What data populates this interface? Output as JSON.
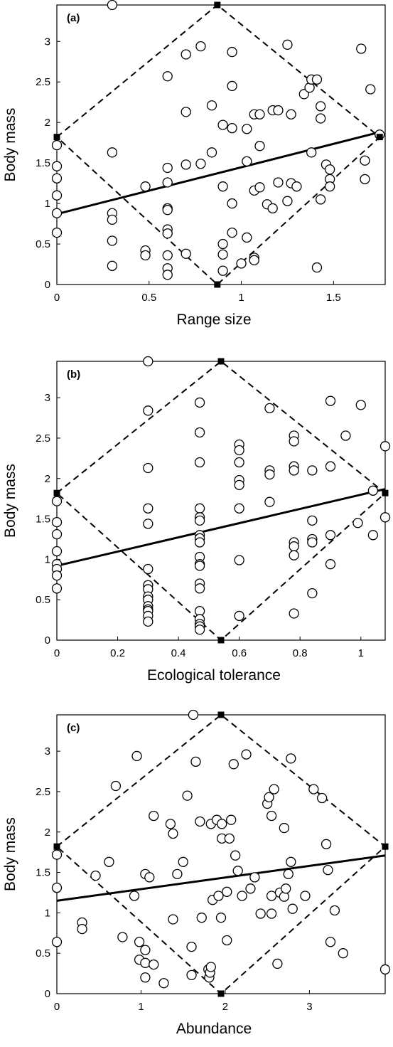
{
  "chart_data": [
    {
      "type": "scatter",
      "panel_label": "(a)",
      "xlabel": "Range size",
      "ylabel": "Body mass",
      "xlim": [
        0,
        1.78
      ],
      "ylim": [
        0,
        3.45
      ],
      "xticks": [
        0,
        0.5,
        1,
        1.5
      ],
      "xtick_labels": [
        "0",
        "0.5",
        "1",
        "1.5"
      ],
      "yticks": [
        0,
        0.5,
        1,
        1.5,
        2,
        2.5,
        3
      ],
      "ytick_labels": [
        "0",
        "0.5",
        "1",
        "1.5",
        "2",
        "2.5",
        "3"
      ],
      "points": [
        [
          0.3,
          3.45
        ],
        [
          0,
          1.72
        ],
        [
          0,
          1.46
        ],
        [
          0,
          1.31
        ],
        [
          0,
          1.1
        ],
        [
          0,
          0.88
        ],
        [
          0,
          0.64
        ],
        [
          0.3,
          1.63
        ],
        [
          0.3,
          0.88
        ],
        [
          0.3,
          0.8
        ],
        [
          0.3,
          0.54
        ],
        [
          0.3,
          0.23
        ],
        [
          0.48,
          1.21
        ],
        [
          0.48,
          0.42
        ],
        [
          0.48,
          0.36
        ],
        [
          0.6,
          2.57
        ],
        [
          0.6,
          1.44
        ],
        [
          0.6,
          1.26
        ],
        [
          0.6,
          0.94
        ],
        [
          0.6,
          0.92
        ],
        [
          0.6,
          0.68
        ],
        [
          0.6,
          0.63
        ],
        [
          0.6,
          0.36
        ],
        [
          0.6,
          0.2
        ],
        [
          0.6,
          0.12
        ],
        [
          0.7,
          2.84
        ],
        [
          0.7,
          2.13
        ],
        [
          0.7,
          1.48
        ],
        [
          0.7,
          0.38
        ],
        [
          0.78,
          2.94
        ],
        [
          0.78,
          1.49
        ],
        [
          0.84,
          2.21
        ],
        [
          0.84,
          1.63
        ],
        [
          0.9,
          1.97
        ],
        [
          0.9,
          1.21
        ],
        [
          0.9,
          0.5
        ],
        [
          0.9,
          0.37
        ],
        [
          0.9,
          0.17
        ],
        [
          0.95,
          2.87
        ],
        [
          0.95,
          2.45
        ],
        [
          0.95,
          1.93
        ],
        [
          0.95,
          1.0
        ],
        [
          0.95,
          0.64
        ],
        [
          1.0,
          0.26
        ],
        [
          1.03,
          1.92
        ],
        [
          1.03,
          1.52
        ],
        [
          1.03,
          0.58
        ],
        [
          1.07,
          2.1
        ],
        [
          1.07,
          1.16
        ],
        [
          1.07,
          0.33
        ],
        [
          1.07,
          0.3
        ],
        [
          1.1,
          2.1
        ],
        [
          1.1,
          1.71
        ],
        [
          1.1,
          1.2
        ],
        [
          1.14,
          0.99
        ],
        [
          1.17,
          2.15
        ],
        [
          1.17,
          0.94
        ],
        [
          1.2,
          2.15
        ],
        [
          1.2,
          1.26
        ],
        [
          1.25,
          2.96
        ],
        [
          1.25,
          1.03
        ],
        [
          1.27,
          2.1
        ],
        [
          1.27,
          1.25
        ],
        [
          1.3,
          1.21
        ],
        [
          1.34,
          2.35
        ],
        [
          1.37,
          2.43
        ],
        [
          1.38,
          2.53
        ],
        [
          1.38,
          1.63
        ],
        [
          1.41,
          2.53
        ],
        [
          1.41,
          0.21
        ],
        [
          1.43,
          2.2
        ],
        [
          1.43,
          2.05
        ],
        [
          1.43,
          1.05
        ],
        [
          1.46,
          1.48
        ],
        [
          1.48,
          1.42
        ],
        [
          1.48,
          1.3
        ],
        [
          1.48,
          1.21
        ],
        [
          1.65,
          2.91
        ],
        [
          1.67,
          1.53
        ],
        [
          1.67,
          1.3
        ],
        [
          1.7,
          2.41
        ],
        [
          1.75,
          1.85
        ]
      ],
      "regression_line": [
        [
          0,
          0.87
        ],
        [
          1.75,
          1.88
        ]
      ],
      "diamond_vertices": [
        [
          0,
          1.82
        ],
        [
          0.87,
          3.45
        ],
        [
          1.75,
          1.82
        ],
        [
          0.87,
          0
        ]
      ]
    },
    {
      "type": "scatter",
      "panel_label": "(b)",
      "xlabel": "Ecological tolerance",
      "ylabel": "Body mass",
      "xlim": [
        0,
        1.08
      ],
      "ylim": [
        0,
        3.45
      ],
      "xticks": [
        0,
        0.2,
        0.4,
        0.6,
        0.8,
        1
      ],
      "xtick_labels": [
        "0",
        "0.2",
        "0.4",
        "0.6",
        "0.8",
        "1"
      ],
      "yticks": [
        0,
        0.5,
        1,
        1.5,
        2,
        2.5,
        3
      ],
      "ytick_labels": [
        "0",
        "0.5",
        "1",
        "1.5",
        "2",
        "2.5",
        "3"
      ],
      "points": [
        [
          0.3,
          3.45
        ],
        [
          0,
          1.72
        ],
        [
          0,
          1.46
        ],
        [
          0,
          1.31
        ],
        [
          0,
          1.1
        ],
        [
          0,
          0.94
        ],
        [
          0,
          0.88
        ],
        [
          0,
          0.8
        ],
        [
          0,
          0.64
        ],
        [
          0.3,
          2.84
        ],
        [
          0.3,
          2.13
        ],
        [
          0.3,
          1.63
        ],
        [
          0.3,
          1.44
        ],
        [
          0.3,
          0.88
        ],
        [
          0.3,
          0.68
        ],
        [
          0.3,
          0.63
        ],
        [
          0.3,
          0.54
        ],
        [
          0.3,
          0.5
        ],
        [
          0.3,
          0.42
        ],
        [
          0.3,
          0.38
        ],
        [
          0.3,
          0.36
        ],
        [
          0.3,
          0.3
        ],
        [
          0.3,
          0.23
        ],
        [
          0.47,
          2.94
        ],
        [
          0.47,
          2.57
        ],
        [
          0.47,
          2.2
        ],
        [
          0.47,
          1.63
        ],
        [
          0.47,
          1.52
        ],
        [
          0.47,
          1.48
        ],
        [
          0.47,
          1.3
        ],
        [
          0.47,
          1.26
        ],
        [
          0.47,
          1.21
        ],
        [
          0.47,
          1.03
        ],
        [
          0.47,
          0.94
        ],
        [
          0.47,
          0.92
        ],
        [
          0.47,
          0.7
        ],
        [
          0.47,
          0.64
        ],
        [
          0.47,
          0.36
        ],
        [
          0.47,
          0.26
        ],
        [
          0.47,
          0.2
        ],
        [
          0.47,
          0.17
        ],
        [
          0.47,
          0.13
        ],
        [
          0.6,
          2.42
        ],
        [
          0.6,
          2.35
        ],
        [
          0.6,
          2.2
        ],
        [
          0.6,
          1.98
        ],
        [
          0.6,
          1.92
        ],
        [
          0.6,
          1.63
        ],
        [
          0.6,
          0.99
        ],
        [
          0.6,
          0.3
        ],
        [
          0.7,
          2.87
        ],
        [
          0.7,
          2.1
        ],
        [
          0.7,
          2.05
        ],
        [
          0.7,
          1.71
        ],
        [
          0.78,
          2.53
        ],
        [
          0.78,
          2.46
        ],
        [
          0.78,
          2.15
        ],
        [
          0.78,
          2.1
        ],
        [
          0.78,
          1.21
        ],
        [
          0.78,
          1.16
        ],
        [
          0.78,
          1.05
        ],
        [
          0.78,
          0.33
        ],
        [
          0.84,
          2.1
        ],
        [
          0.84,
          1.48
        ],
        [
          0.84,
          1.25
        ],
        [
          0.84,
          1.21
        ],
        [
          0.84,
          0.58
        ],
        [
          0.9,
          2.96
        ],
        [
          0.9,
          2.15
        ],
        [
          0.9,
          1.3
        ],
        [
          0.9,
          0.94
        ],
        [
          0.95,
          2.53
        ],
        [
          0.99,
          1.45
        ],
        [
          1.0,
          2.91
        ],
        [
          1.04,
          1.85
        ],
        [
          1.04,
          1.3
        ],
        [
          1.08,
          2.4
        ],
        [
          1.08,
          1.52
        ]
      ],
      "regression_line": [
        [
          0,
          0.92
        ],
        [
          1.08,
          1.87
        ]
      ],
      "diamond_vertices": [
        [
          0,
          1.82
        ],
        [
          0.54,
          3.45
        ],
        [
          1.08,
          1.82
        ],
        [
          0.54,
          0
        ]
      ]
    },
    {
      "type": "scatter",
      "panel_label": "(c)",
      "xlabel": "Abundance",
      "ylabel": "Body mass",
      "xlim": [
        0,
        3.9
      ],
      "ylim": [
        0,
        3.45
      ],
      "xticks": [
        0,
        1,
        2,
        3
      ],
      "xtick_labels": [
        "0",
        "1",
        "2",
        "3"
      ],
      "yticks": [
        0,
        0.5,
        1,
        1.5,
        2,
        2.5,
        3
      ],
      "ytick_labels": [
        "0",
        "0.5",
        "1",
        "1.5",
        "2",
        "2.5",
        "3"
      ],
      "points": [
        [
          1.62,
          3.45
        ],
        [
          0,
          1.72
        ],
        [
          0,
          1.31
        ],
        [
          0,
          0.64
        ],
        [
          0.3,
          0.88
        ],
        [
          0.3,
          0.8
        ],
        [
          0.46,
          1.46
        ],
        [
          0.62,
          1.63
        ],
        [
          0.7,
          2.57
        ],
        [
          0.78,
          0.7
        ],
        [
          0.92,
          1.21
        ],
        [
          0.95,
          2.94
        ],
        [
          0.98,
          0.64
        ],
        [
          0.98,
          0.42
        ],
        [
          1.05,
          1.48
        ],
        [
          1.05,
          0.54
        ],
        [
          1.05,
          0.38
        ],
        [
          1.05,
          0.2
        ],
        [
          1.1,
          1.44
        ],
        [
          1.15,
          2.2
        ],
        [
          1.15,
          0.36
        ],
        [
          1.27,
          0.13
        ],
        [
          1.35,
          2.1
        ],
        [
          1.38,
          1.98
        ],
        [
          1.38,
          0.92
        ],
        [
          1.43,
          1.48
        ],
        [
          1.5,
          1.63
        ],
        [
          1.55,
          2.45
        ],
        [
          1.6,
          0.58
        ],
        [
          1.6,
          0.23
        ],
        [
          1.65,
          2.87
        ],
        [
          1.7,
          2.13
        ],
        [
          1.72,
          0.94
        ],
        [
          1.8,
          0.3
        ],
        [
          1.81,
          0.2
        ],
        [
          1.82,
          0.26
        ],
        [
          1.83,
          0.33
        ],
        [
          1.83,
          2.1
        ],
        [
          1.85,
          1.16
        ],
        [
          1.9,
          2.15
        ],
        [
          1.92,
          1.21
        ],
        [
          1.95,
          0.94
        ],
        [
          1.96,
          2.1
        ],
        [
          1.96,
          1.92
        ],
        [
          2.02,
          1.26
        ],
        [
          2.02,
          0.66
        ],
        [
          2.05,
          1.92
        ],
        [
          2.07,
          2.15
        ],
        [
          2.1,
          2.84
        ],
        [
          2.12,
          1.71
        ],
        [
          2.15,
          1.52
        ],
        [
          2.2,
          1.21
        ],
        [
          2.25,
          2.96
        ],
        [
          2.3,
          1.3
        ],
        [
          2.35,
          1.44
        ],
        [
          2.42,
          0.99
        ],
        [
          2.5,
          2.35
        ],
        [
          2.52,
          2.43
        ],
        [
          2.55,
          2.2
        ],
        [
          2.55,
          1.21
        ],
        [
          2.55,
          0.99
        ],
        [
          2.58,
          2.53
        ],
        [
          2.62,
          0.37
        ],
        [
          2.65,
          1.25
        ],
        [
          2.7,
          1.2
        ],
        [
          2.7,
          2.05
        ],
        [
          2.72,
          1.3
        ],
        [
          2.75,
          1.48
        ],
        [
          2.78,
          1.63
        ],
        [
          2.78,
          2.91
        ],
        [
          2.8,
          1.05
        ],
        [
          2.95,
          1.21
        ],
        [
          3.05,
          2.53
        ],
        [
          3.15,
          2.42
        ],
        [
          3.2,
          1.85
        ],
        [
          3.22,
          1.53
        ],
        [
          3.25,
          0.64
        ],
        [
          3.3,
          1.03
        ],
        [
          3.4,
          0.5
        ],
        [
          3.9,
          0.3
        ]
      ],
      "regression_line": [
        [
          0,
          1.15
        ],
        [
          3.9,
          1.71
        ]
      ],
      "diamond_vertices": [
        [
          0,
          1.82
        ],
        [
          1.95,
          3.45
        ],
        [
          3.9,
          1.82
        ],
        [
          1.95,
          0
        ]
      ]
    }
  ]
}
